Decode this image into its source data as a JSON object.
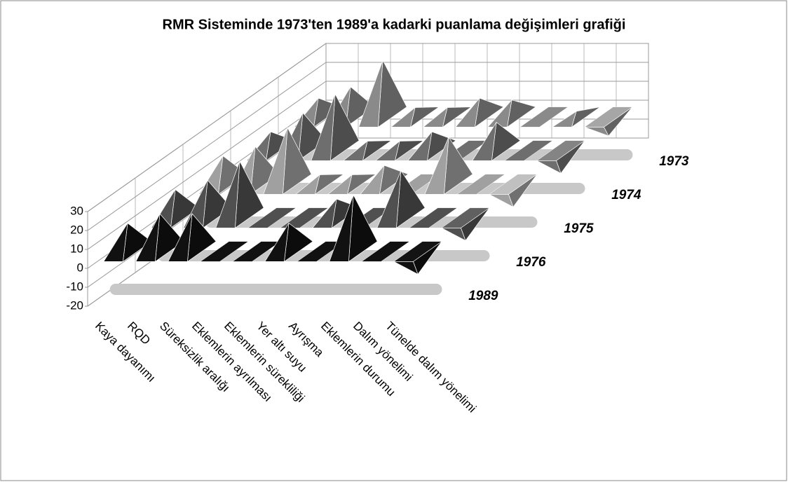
{
  "chart_data": {
    "type": "pyramid3d",
    "title": "RMR Sisteminde 1973'ten 1989'a kadarki puanlama değişimleri grafiği",
    "categories": [
      "Kaya dayanımı",
      "RQD",
      "Süreksizlik aralığı",
      "Eklemlerin ayrılması",
      "Eklemlerin sürekliliği",
      "Yer altı suyu",
      "Ayrışma",
      "Eklemlerin durumu",
      "Dalım yönelimi",
      "Tünelde dalım yönelimi"
    ],
    "series": [
      {
        "name": "1973",
        "color": "#8a8a8a",
        "values": [
          10,
          16,
          30,
          5,
          5,
          10,
          9,
          0,
          3,
          -10
        ]
      },
      {
        "name": "1974",
        "color": "#6e6e6e",
        "values": [
          10,
          20,
          30,
          5,
          5,
          10,
          0,
          15,
          0,
          -12
        ]
      },
      {
        "name": "1975",
        "color": "#a0a0a0",
        "values": [
          15,
          20,
          30,
          5,
          5,
          10,
          0,
          25,
          0,
          -12
        ]
      },
      {
        "name": "1976",
        "color": "#505050",
        "values": [
          15,
          20,
          30,
          0,
          0,
          10,
          0,
          25,
          0,
          -12
        ]
      },
      {
        "name": "1989",
        "color": "#111111",
        "values": [
          15,
          20,
          20,
          0,
          0,
          15,
          0,
          30,
          0,
          -12
        ]
      }
    ],
    "ylim": [
      -20,
      30
    ],
    "yticks": [
      -20,
      -10,
      0,
      10,
      20,
      30
    ],
    "grid": true
  }
}
